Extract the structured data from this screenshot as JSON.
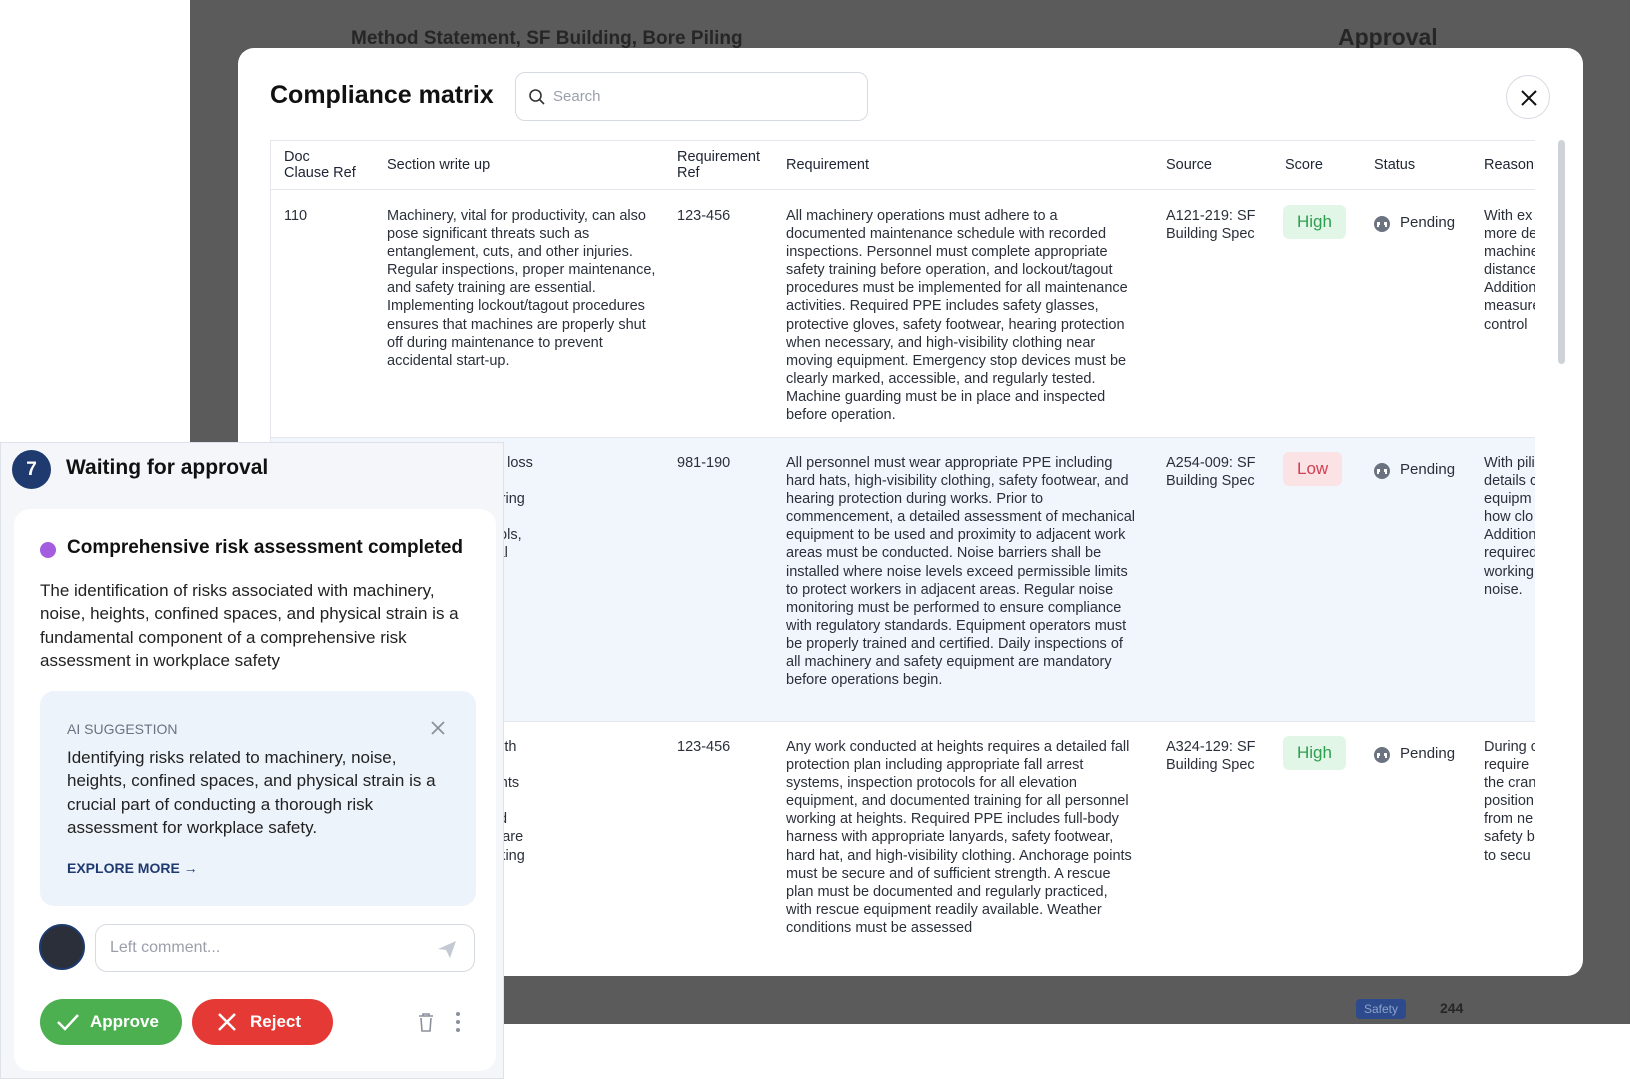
{
  "background": {
    "title": "Method Statement, SF Building, Bore Piling",
    "panel_title": "Approval",
    "tag": "Safety",
    "count": "244"
  },
  "modal": {
    "title": "Compliance matrix",
    "search_placeholder": "Search",
    "table": {
      "headers": [
        "Doc\nClause Ref",
        "Section write up",
        "Requirement\nRef",
        "Requirement",
        "Source",
        "Score",
        "Status",
        "Reasoni"
      ],
      "rows": [
        [
          "110",
          "Machinery, vital for productivity, can also pose significant threats such as entanglement, cuts, and other injuries. Regular inspections, proper maintenance, and safety training are essential. Implementing lockout/tagout procedures ensures that machines are properly shut off during maintenance to prevent accidental start-up.",
          "123-456",
          "All machinery operations must adhere to a documented maintenance schedule with recorded inspections. Personnel must complete appropriate safety training before operation, and lockout/tagout procedures must be implemented for all maintenance activities. Required PPE includes safety glasses, protective gloves, safety footwear, hearing protection when necessary, and high-visibility clothing near moving equipment. Emergency stop devices must be clearly marked, accessible, and regularly tested. Machine guarding must be in place and inspected before operation.",
          "A121-219: SF Building Spec",
          "High",
          "Pending",
          "With ex\nmore de\nmachine\ndistance\nAddition\nmeasure\ncontrol"
        ],
        [
          null,
          "an lead to hearing loss\nssues. Identifying\ngh decibel monitoring\nting corrective\n engineering controls,\nicies, and personal\nnent, including\nplugs",
          "981-190",
          "All personnel must wear appropriate PPE including hard hats, high-visibility clothing, safety footwear, and hearing protection during works. Prior to commencement, a detailed assessment of mechanical equipment to be used and proximity to adjacent work areas must be conducted. Noise barriers shall be installed where noise levels exceed permissible limits to protect workers in adjacent areas. Regular noise monitoring must be performed to ensure compliance with regulatory standards. Equipment operators must be properly trained and certified. Daily inspections of all machinery and safety equipment are mandatory before operations begin.",
          "A254-009: SF Building Spec",
          "Low",
          "Pending",
          "With pili\ndetails c\nequipm\nhow clo\nAddition\nrequired\nworking\nnoise."
        ],
        [
          null,
          " inherently risky, with\n a major cause of\ns. Risk assessments\n use of proper fall\necure ladders, and\nsure that workers are\nactices when working\nons.",
          "123-456",
          "Any work conducted at heights requires a detailed fall protection plan including appropriate fall arrest systems, inspection protocols for all elevation equipment, and documented training for all personnel working at heights. Required PPE includes full-body harness with appropriate lanyards, safety footwear, hard hat, and high-visibility clothing. Anchorage points must be secure and of sufficient strength. A rescue plan must be documented and regularly practiced, with rescue equipment readily available. Weather conditions must be assessed",
          "A324-129: SF Building Spec",
          "High",
          "Pending",
          "During c\nrequire\nthe cran\nposition\nfrom ne\nsafety b\nto secu"
        ]
      ]
    }
  },
  "approval_panel": {
    "step": 7,
    "title": "Waiting for approval",
    "item_title": "Comprehensive risk assessment completed",
    "description": "The identification of risks associated with machinery, noise, heights, confined spaces, and physical strain is a fundamental component of a comprehensive risk assessment in workplace safety",
    "ai_suggestion": {
      "label": "AI SUGGESTION",
      "text": "Identifying risks related to machinery, noise, heights, confined spaces, and physical strain is a crucial part of conducting a thorough risk assessment for workplace safety.",
      "link": "EXPLORE MORE →"
    },
    "comment_placeholder": "Left comment...",
    "approve": "Approve",
    "reject": "Reject"
  }
}
